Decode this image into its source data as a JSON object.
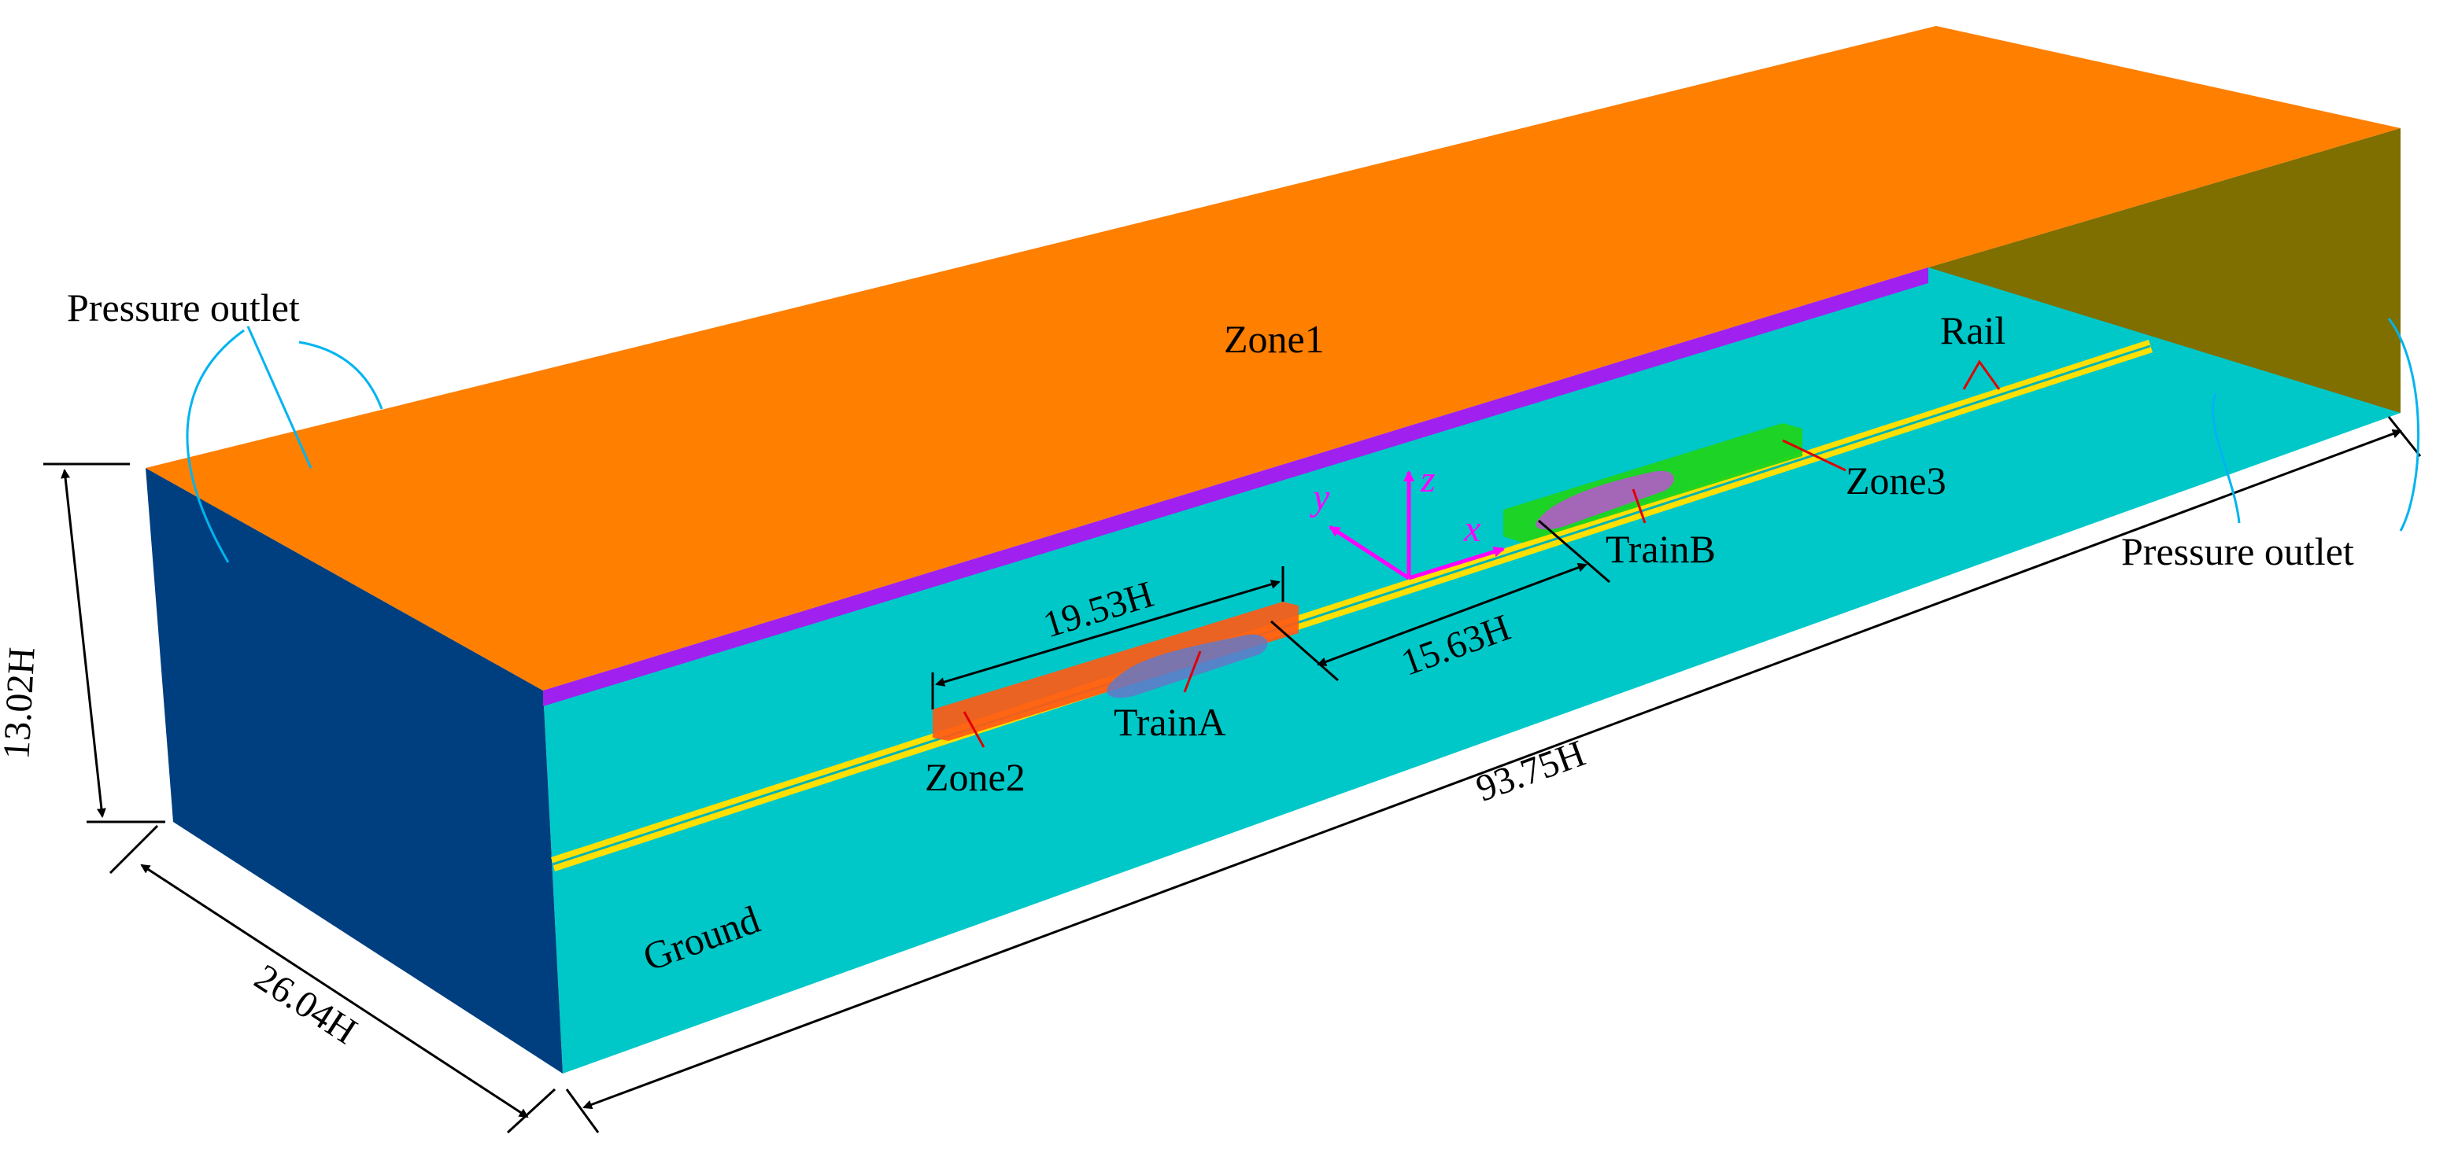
{
  "labels": {
    "pressure_outlet_left": "Pressure outlet",
    "pressure_outlet_right": "Pressure outlet",
    "zone1": "Zone1",
    "zone2": "Zone2",
    "zone3": "Zone3",
    "rail": "Rail",
    "train_a": "TrainA",
    "train_b": "TrainB",
    "ground": "Ground"
  },
  "dimensions": {
    "height": "13.02H",
    "width": "26.04H",
    "length": "93.75H",
    "zone2_length": "19.53H",
    "train_spacing": "15.63H"
  },
  "axes": {
    "x": "x",
    "y": "y",
    "z": "z"
  },
  "colors": {
    "top_surface": "#FF7F00",
    "left_face": "#003F7F",
    "ground": "#00C8C8",
    "back_edge": "#A020F0",
    "right_face": "#7F6E00",
    "rail": "#FFE000",
    "zone2": "#FF5A14",
    "zone3": "#1ED41E",
    "train_a": "#6478C8",
    "train_b": "#B45AC8",
    "axes": "#FF00FF",
    "leader_blue": "#00B4F0",
    "leader_red": "#E00000"
  }
}
